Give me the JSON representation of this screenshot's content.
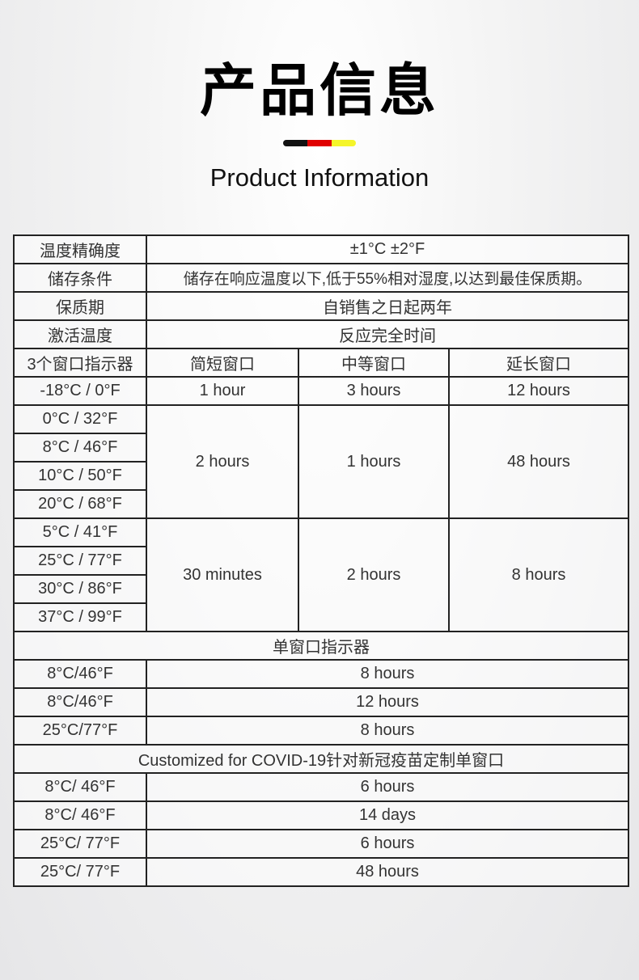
{
  "header": {
    "title": "产品信息",
    "subtitle": "Product Information",
    "accent_colors": [
      "#111111",
      "#e00000",
      "#f5f52a"
    ]
  },
  "table": {
    "accuracy": {
      "label": "温度精确度",
      "value": "±1°C ±2°F"
    },
    "storage": {
      "label": "储存条件",
      "value": "储存在响应温度以下,低于55%相对湿度,以达到最佳保质期。"
    },
    "shelf_life": {
      "label": "保质期",
      "value": "自销售之日起两年"
    },
    "activation": {
      "label": "激活温度",
      "value": "反应完全时间"
    },
    "three_window": {
      "headers": [
        "3个窗口指示器",
        "简短窗口",
        "中等窗口",
        "延长窗口"
      ],
      "row1": {
        "temp": "-18°C / 0°F",
        "short": "1 hour",
        "medium": "3 hours",
        "extended": "12 hours"
      },
      "group1": {
        "temps": [
          "0°C / 32°F",
          "8°C / 46°F",
          "10°C / 50°F",
          "20°C / 68°F"
        ],
        "short": "2 hours",
        "medium": "1 hours",
        "extended": "48 hours"
      },
      "group2": {
        "temps": [
          "5°C / 41°F",
          "25°C / 77°F",
          "30°C / 86°F",
          "37°C / 99°F"
        ],
        "short": "30 minutes",
        "medium": "2 hours",
        "extended": "8 hours"
      }
    },
    "single_window": {
      "heading": "单窗口指示器",
      "rows": [
        {
          "temp": "8°C/46°F",
          "value": "8 hours"
        },
        {
          "temp": "8°C/46°F",
          "value": "12 hours"
        },
        {
          "temp": "25°C/77°F",
          "value": "8 hours"
        }
      ]
    },
    "covid": {
      "heading": "Customized for COVID-19针对新冠疫苗定制单窗口",
      "rows": [
        {
          "temp": "8°C/ 46°F",
          "value": "6 hours"
        },
        {
          "temp": "8°C/ 46°F",
          "value": "14 days"
        },
        {
          "temp": "25°C/ 77°F",
          "value": "6 hours"
        },
        {
          "temp": "25°C/ 77°F",
          "value": "48 hours"
        }
      ]
    }
  }
}
